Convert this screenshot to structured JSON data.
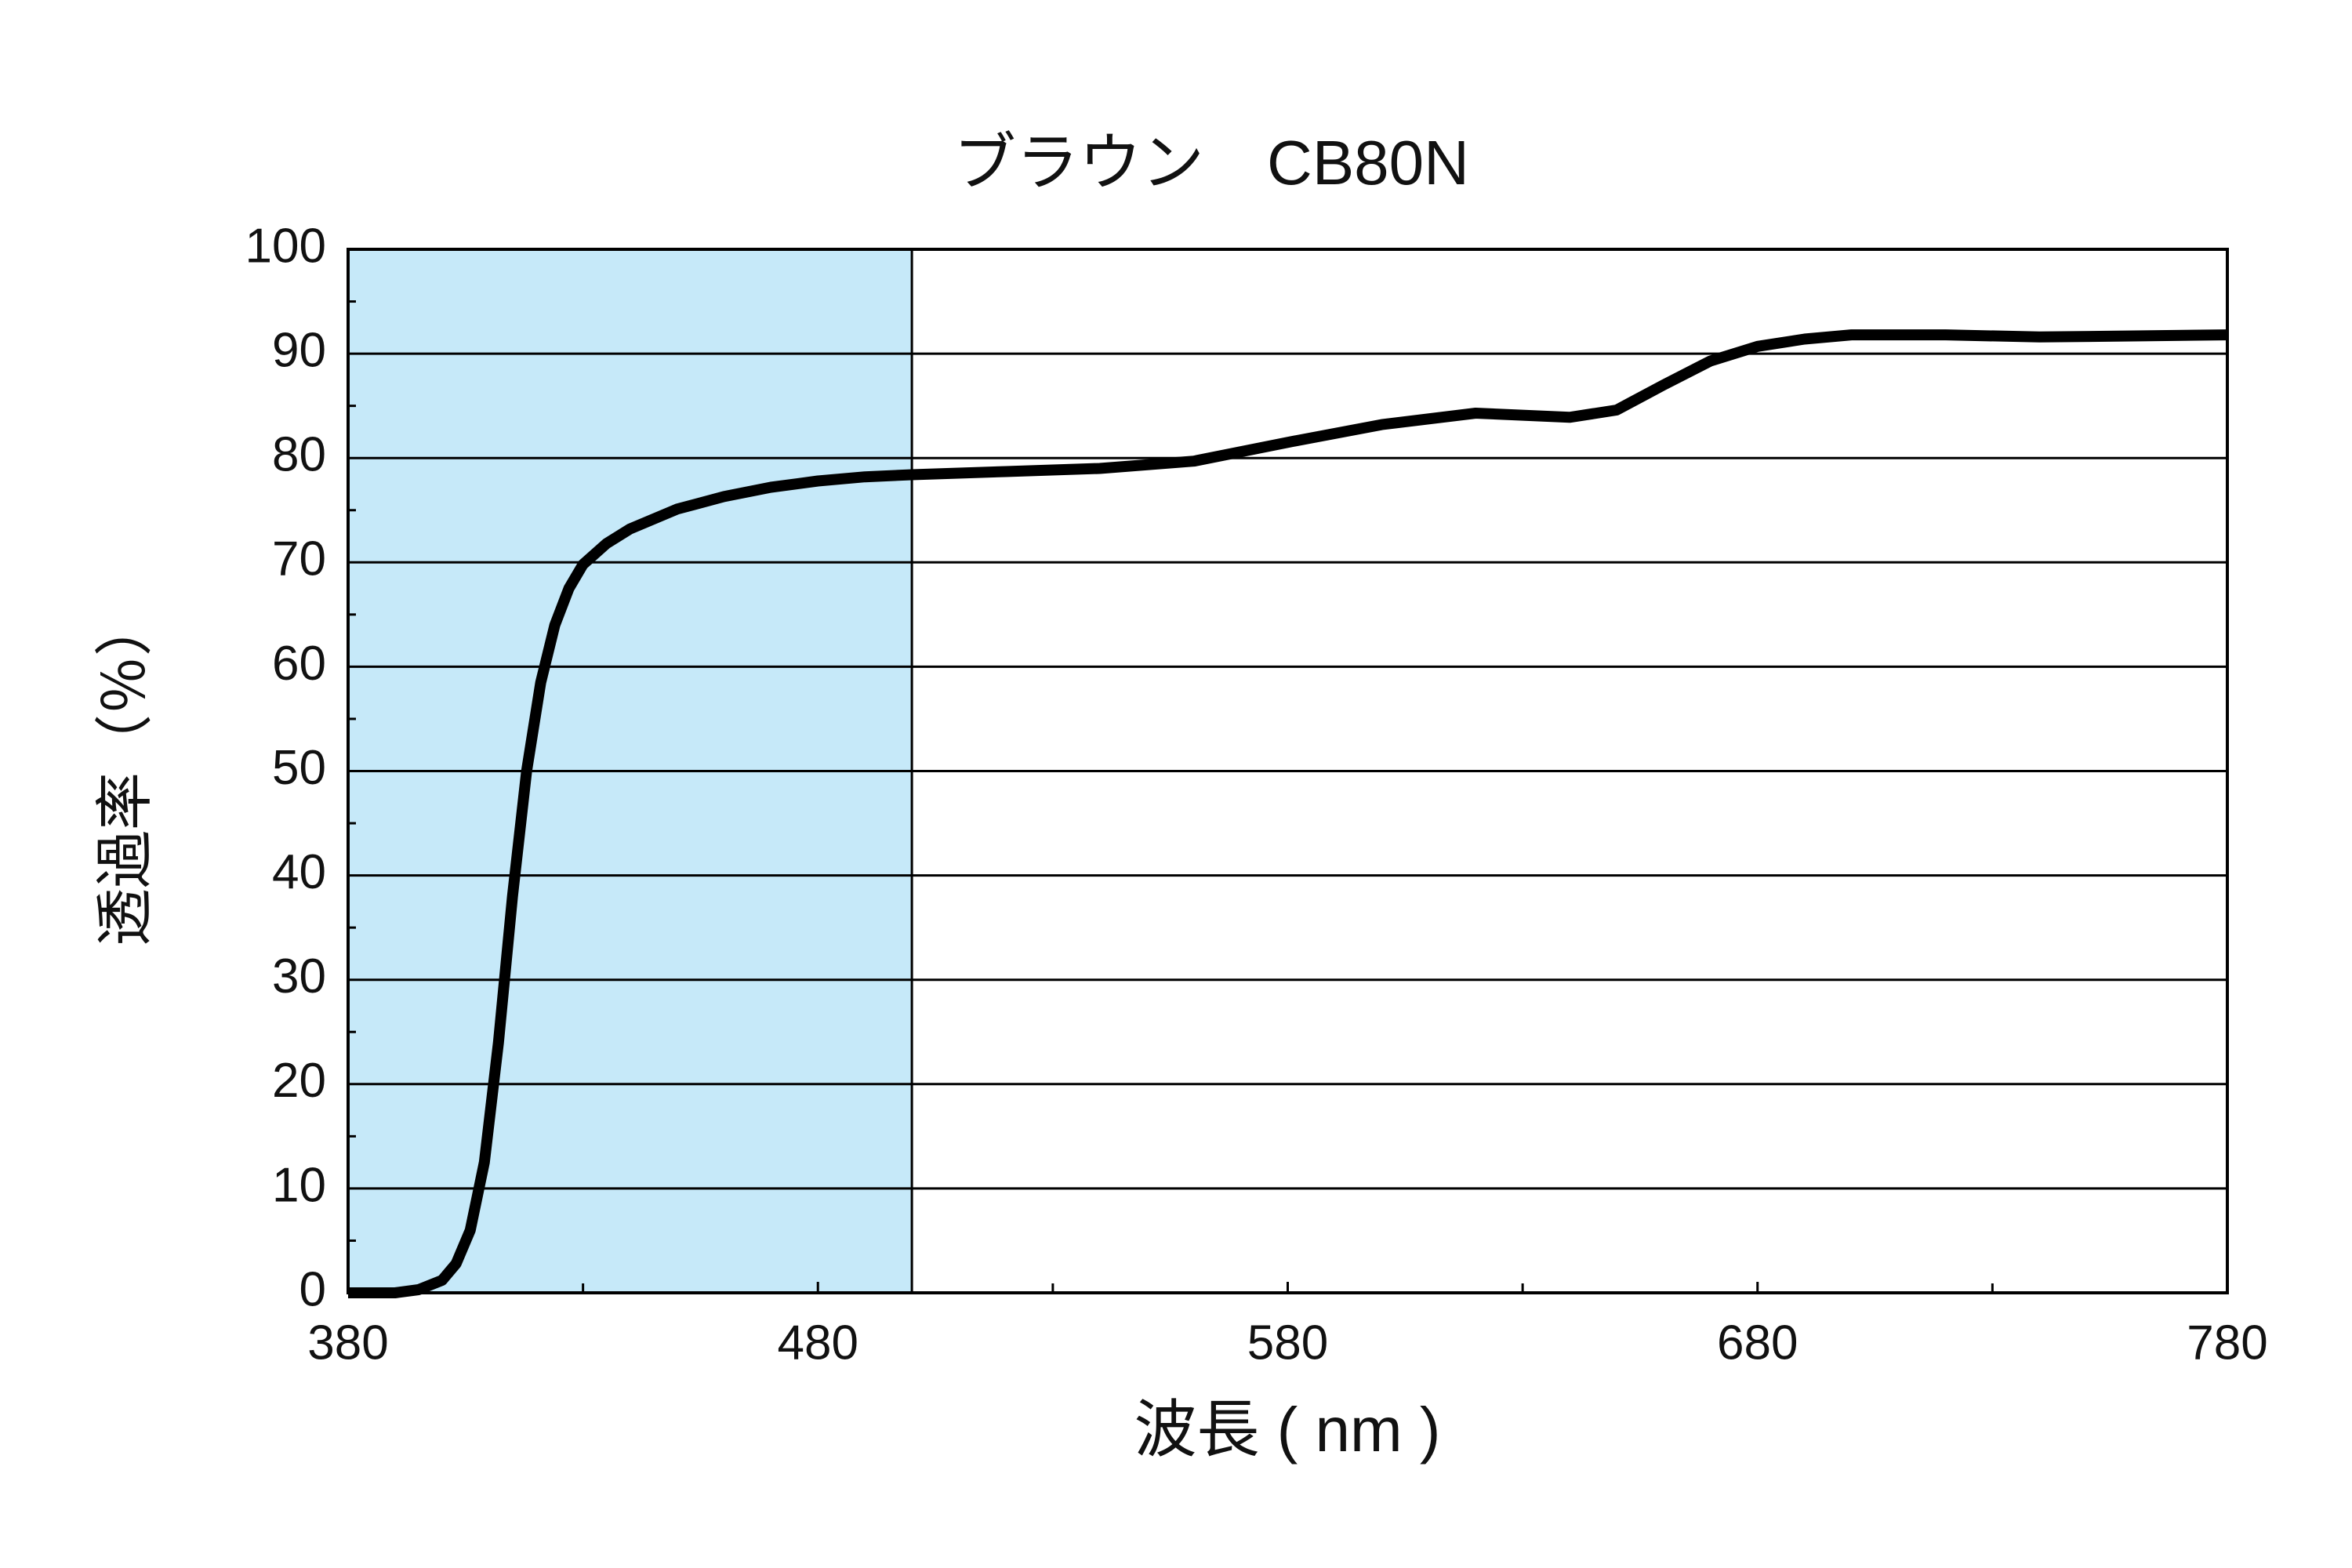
{
  "chart_data": {
    "type": "line",
    "title": "ブラウン　CB80N",
    "xlabel": "波長 ( nm )",
    "ylabel": "透過率（％）",
    "x": [
      380,
      390,
      395,
      400,
      403,
      406,
      409,
      412,
      415,
      418,
      421,
      424,
      427,
      430,
      435,
      440,
      450,
      460,
      470,
      480,
      490,
      500,
      520,
      540,
      560,
      580,
      600,
      620,
      640,
      650,
      660,
      670,
      680,
      690,
      700,
      720,
      740,
      760,
      780
    ],
    "values": [
      0,
      0,
      0.3,
      1.2,
      2.8,
      6,
      12.5,
      24,
      38,
      50,
      58.5,
      64,
      67.5,
      69.8,
      71.8,
      73.2,
      75.1,
      76.3,
      77.2,
      77.8,
      78.2,
      78.4,
      78.7,
      79.0,
      79.7,
      81.5,
      83.2,
      84.3,
      83.9,
      84.6,
      87,
      89.3,
      90.7,
      91.4,
      91.8,
      91.8,
      91.6,
      91.7,
      91.8
    ],
    "color": "#000000",
    "shade_xrange": [
      380,
      500
    ],
    "shade_color": "#c6e9f9",
    "xlim": [
      380,
      780
    ],
    "xticks": [
      380,
      480,
      580,
      680,
      780
    ],
    "xminorticks": [
      430,
      530,
      630,
      730
    ],
    "ylim": [
      0,
      100
    ],
    "yticks": [
      0,
      10,
      20,
      30,
      40,
      50,
      60,
      70,
      80,
      90,
      100
    ],
    "yminorticks": [
      5,
      15,
      25,
      35,
      45,
      55,
      65,
      75,
      85,
      95
    ],
    "grid": true
  }
}
